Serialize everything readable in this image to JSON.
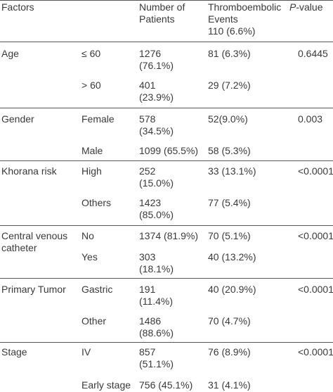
{
  "header": {
    "factors": "Factors",
    "patients_line1": "Number of",
    "patients_line2": "Patients",
    "events_line1": "Thromboembolic",
    "events_line2": "Events",
    "events_line3": "110 (6.6%)",
    "pvalue_italic": "P",
    "pvalue_rest": "-value"
  },
  "groups": [
    {
      "factor": [
        "Age"
      ],
      "pvalue": "0.6445",
      "rows": [
        {
          "level": "≤ 60",
          "patients": [
            "1276",
            "(76.1%)"
          ],
          "events": "81 (6.3%)"
        },
        {
          "level": "> 60",
          "patients": [
            "401",
            "(23.9%)"
          ],
          "events": "29 (7.2%)"
        }
      ]
    },
    {
      "factor": [
        "Gender"
      ],
      "pvalue": "0.003",
      "rows": [
        {
          "level": "Female",
          "patients": [
            "578",
            "(34.5%)"
          ],
          "events": "52(9.0%)"
        },
        {
          "level": "Male",
          "patients": [
            "1099 (65.5%)"
          ],
          "events": "58 (5.3%)"
        }
      ]
    },
    {
      "factor": [
        "Khorana risk"
      ],
      "pvalue": "<0.0001",
      "rows": [
        {
          "level": "High",
          "patients": [
            "252",
            "(15.0%)"
          ],
          "events": "33 (13.1%)"
        },
        {
          "level": "Others",
          "patients": [
            "1423",
            "(85.0%)"
          ],
          "events": "77 (5.4%)"
        }
      ]
    },
    {
      "factor": [
        "Central venous",
        "catheter"
      ],
      "pvalue": "<0.0001",
      "rows": [
        {
          "level": "No",
          "patients": [
            "1374 (81.9%)"
          ],
          "events": "70 (5.1%)"
        },
        {
          "level": "Yes",
          "patients": [
            "303",
            "(18.1%)"
          ],
          "events": "40 (13.2%)"
        }
      ]
    },
    {
      "factor": [
        "Primary Tumor"
      ],
      "pvalue": "<0.0001",
      "rows": [
        {
          "level": "Gastric",
          "patients": [
            "191",
            "(11.4%)"
          ],
          "events": "40 (20.9%)"
        },
        {
          "level": "Other",
          "patients": [
            "1486",
            "(88.6%)"
          ],
          "events": "70 (4.7%)"
        }
      ]
    },
    {
      "factor": [
        "Stage"
      ],
      "pvalue": "<0.0001",
      "rows": [
        {
          "level": "IV",
          "patients": [
            "857",
            "(51.1%)"
          ],
          "events": "76 (8.9%)"
        },
        {
          "level": "Early stage",
          "patients": [
            "756 (45.1%)"
          ],
          "events": "31 (4.1%)"
        }
      ]
    }
  ]
}
